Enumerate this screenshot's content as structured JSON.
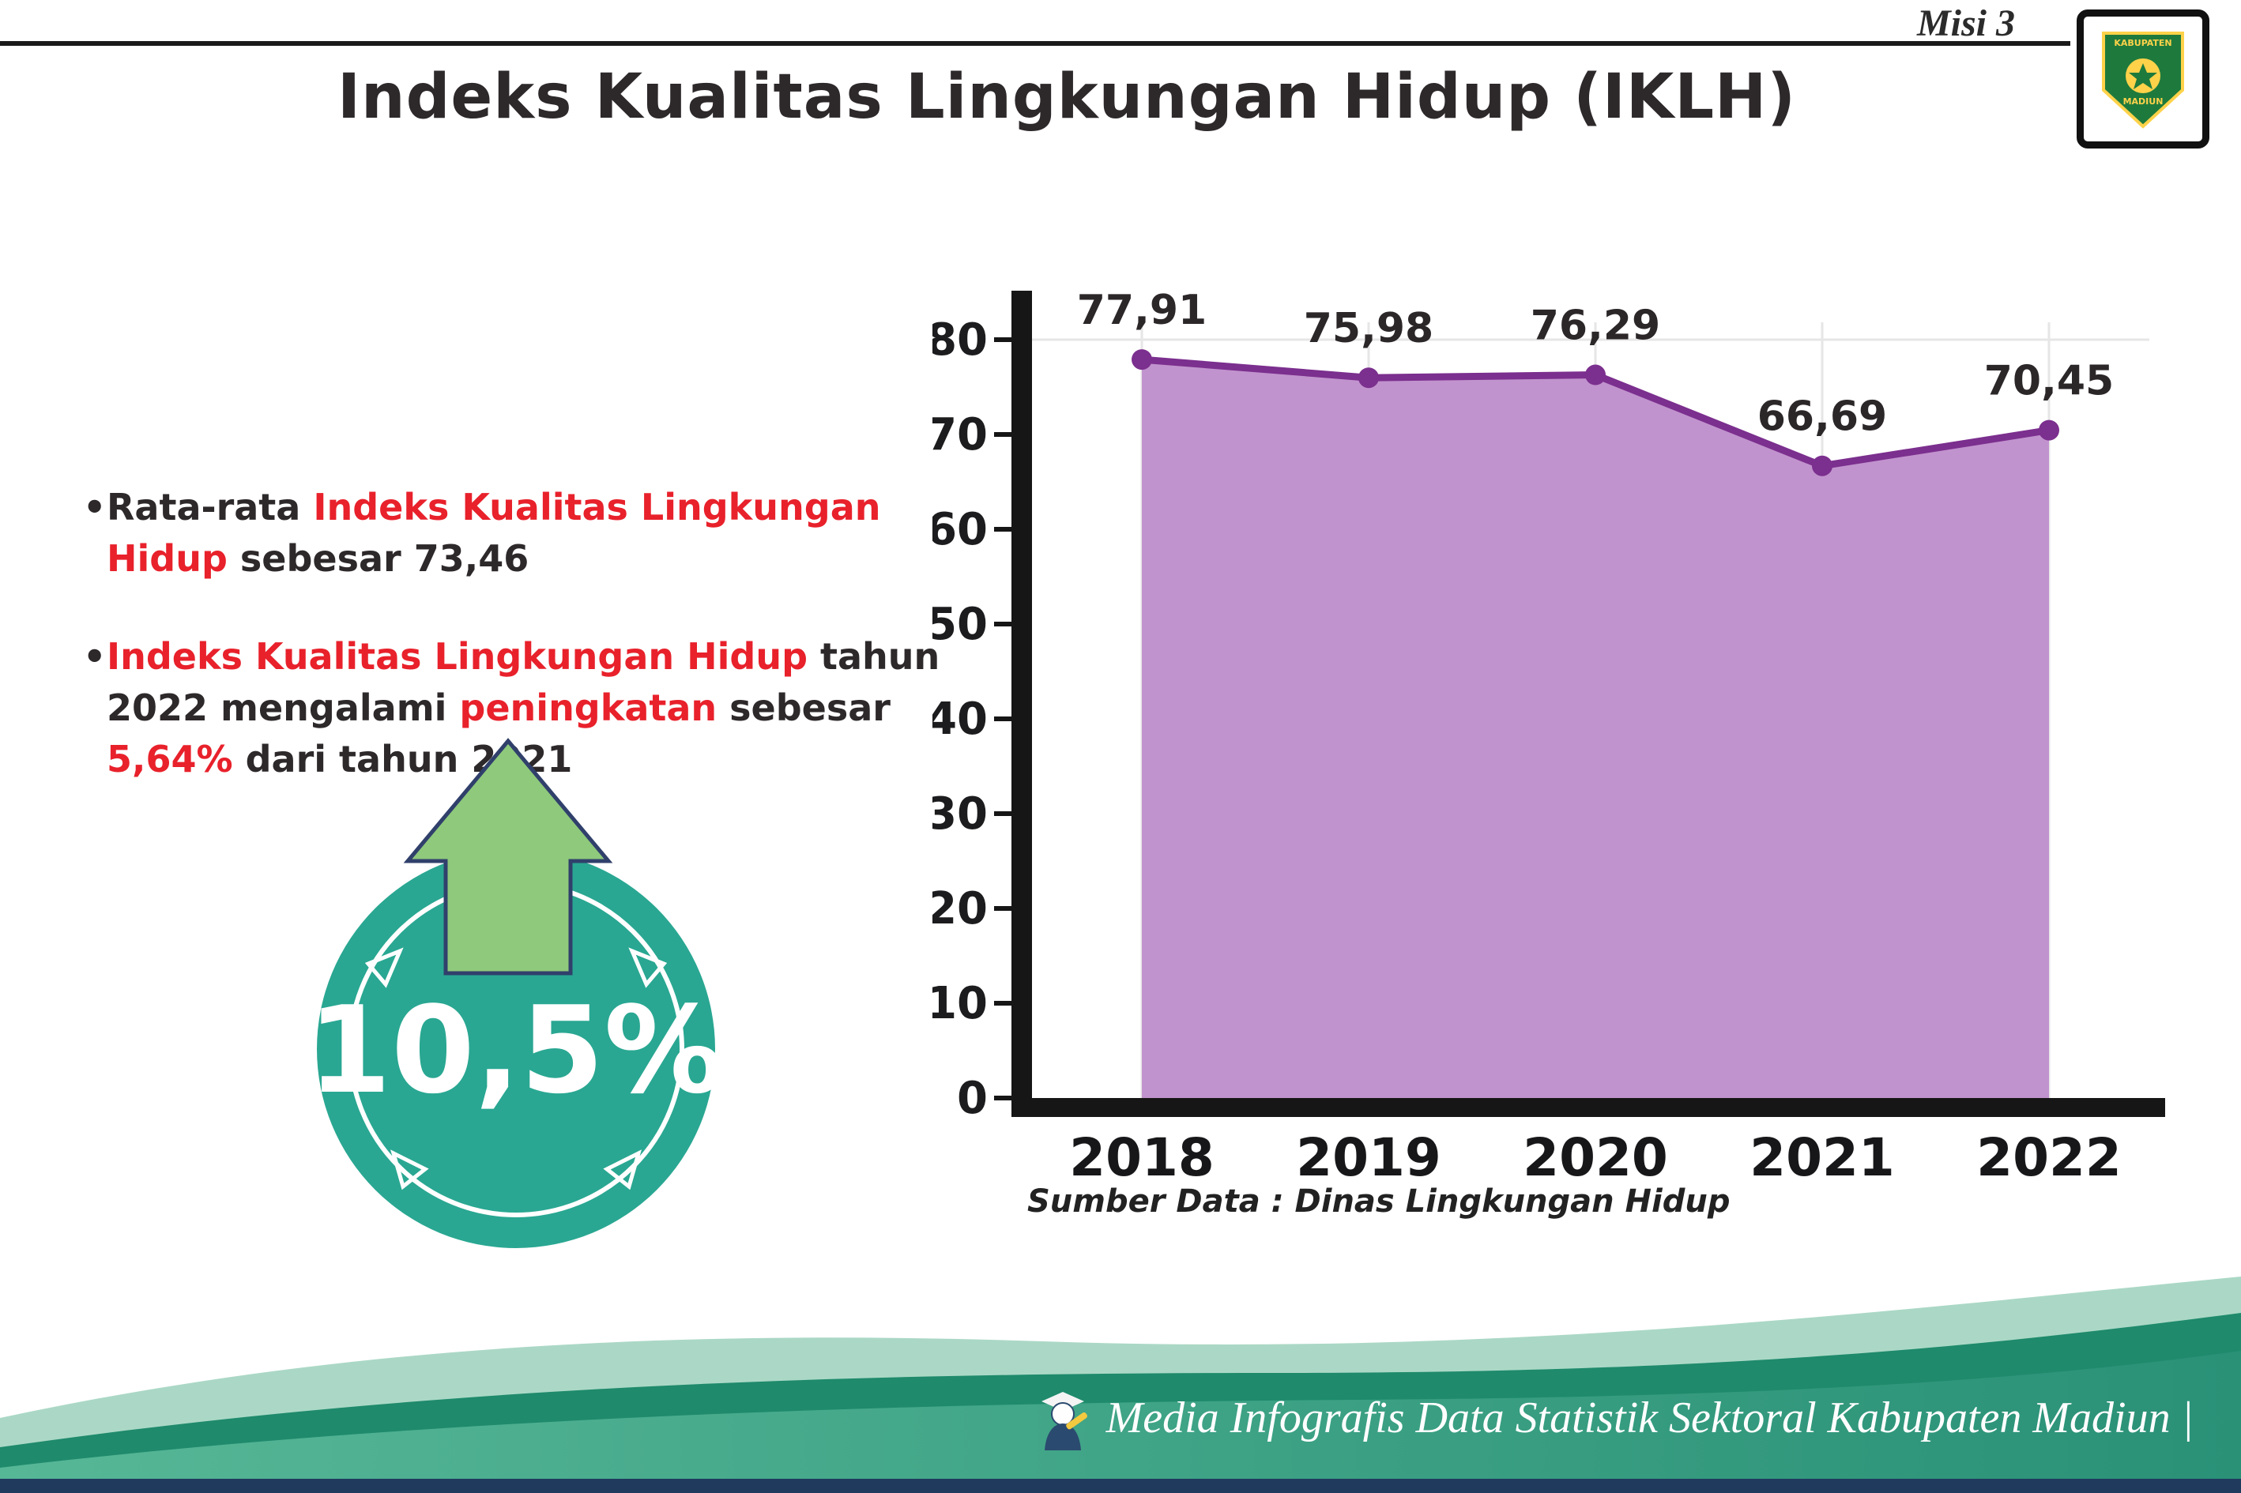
{
  "header": {
    "misi": "Misi 3",
    "logo_text_top": "KABUPATEN",
    "logo_text_bottom": "MADIUN"
  },
  "title": "Indeks Kualitas Lingkungan Hidup (IKLH)",
  "bullets": [
    {
      "parts": [
        {
          "text": "Rata-rata ",
          "red": false
        },
        {
          "text": "Indeks Kualitas Lingkungan Hidup",
          "red": true
        },
        {
          "text": " sebesar 73,46",
          "red": false
        }
      ]
    },
    {
      "parts": [
        {
          "text": "Indeks Kualitas Lingkungan Hidup",
          "red": true
        },
        {
          "text": " tahun 2022 mengalami ",
          "red": false
        },
        {
          "text": "peningkatan",
          "red": true
        },
        {
          "text": " sebesar ",
          "red": false
        },
        {
          "text": "5,64%",
          "red": true
        },
        {
          "text": " dari tahun 2021",
          "red": false
        }
      ]
    }
  ],
  "badge": {
    "value": "10,5%",
    "circle_color": "#29a792",
    "arrow_color": "#8fc97c"
  },
  "chart_data": {
    "type": "area",
    "categories": [
      "2018",
      "2019",
      "2020",
      "2021",
      "2022"
    ],
    "values": [
      77.91,
      75.98,
      76.29,
      66.69,
      70.45
    ],
    "point_labels": [
      "77,91",
      "75,98",
      "76,29",
      "66,69",
      "70,45"
    ],
    "title": "",
    "xlabel": "",
    "ylabel": "",
    "ylim": [
      0,
      80
    ],
    "ytick_step": 10,
    "grid": "light vertical per year + horizontal at 80",
    "legend": "none",
    "line_color": "#7b2f8e",
    "fill_color": "#c193ce",
    "axis_color": "#161616",
    "source": "Sumber Data : Dinas Lingkungan Hidup"
  },
  "footer": {
    "text": "Media Infografis Data Statistik Sektoral Kabupaten Madiun |"
  }
}
